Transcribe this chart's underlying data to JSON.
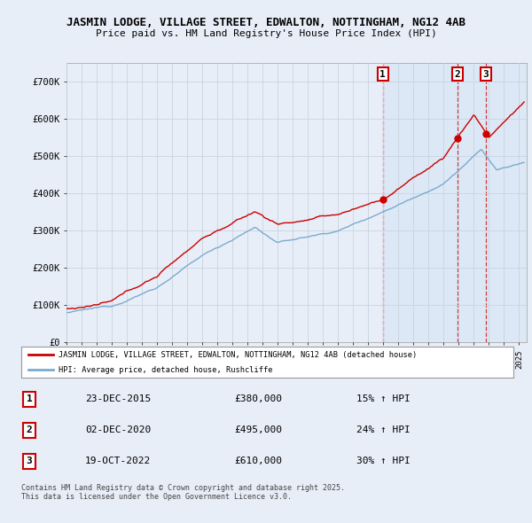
{
  "title1": "JASMIN LODGE, VILLAGE STREET, EDWALTON, NOTTINGHAM, NG12 4AB",
  "title2": "Price paid vs. HM Land Registry's House Price Index (HPI)",
  "bg_color": "#e8eef8",
  "plot_bg_color": "#e8eef8",
  "shade_color": "#dce8f5",
  "grid_color": "#c8d4e0",
  "red_color": "#cc0000",
  "blue_color": "#7aabcf",
  "legend_label_red": "JASMIN LODGE, VILLAGE STREET, EDWALTON, NOTTINGHAM, NG12 4AB (detached house)",
  "legend_label_blue": "HPI: Average price, detached house, Rushcliffe",
  "sales": [
    {
      "num": 1,
      "date": "23-DEC-2015",
      "price": 380000,
      "pct": "15%",
      "x_year": 2015.97
    },
    {
      "num": 2,
      "date": "02-DEC-2020",
      "price": 495000,
      "pct": "24%",
      "x_year": 2020.92
    },
    {
      "num": 3,
      "date": "19-OCT-2022",
      "price": 610000,
      "pct": "30%",
      "x_year": 2022.79
    }
  ],
  "copyright_text": "Contains HM Land Registry data © Crown copyright and database right 2025.\nThis data is licensed under the Open Government Licence v3.0.",
  "xmin": 1995,
  "xmax": 2025.5,
  "ymin": 0,
  "ymax": 750000,
  "yticks": [
    0,
    100000,
    200000,
    300000,
    400000,
    500000,
    600000,
    700000
  ],
  "ytick_labels": [
    "£0",
    "£100K",
    "£200K",
    "£300K",
    "£400K",
    "£500K",
    "£600K",
    "£700K"
  ]
}
